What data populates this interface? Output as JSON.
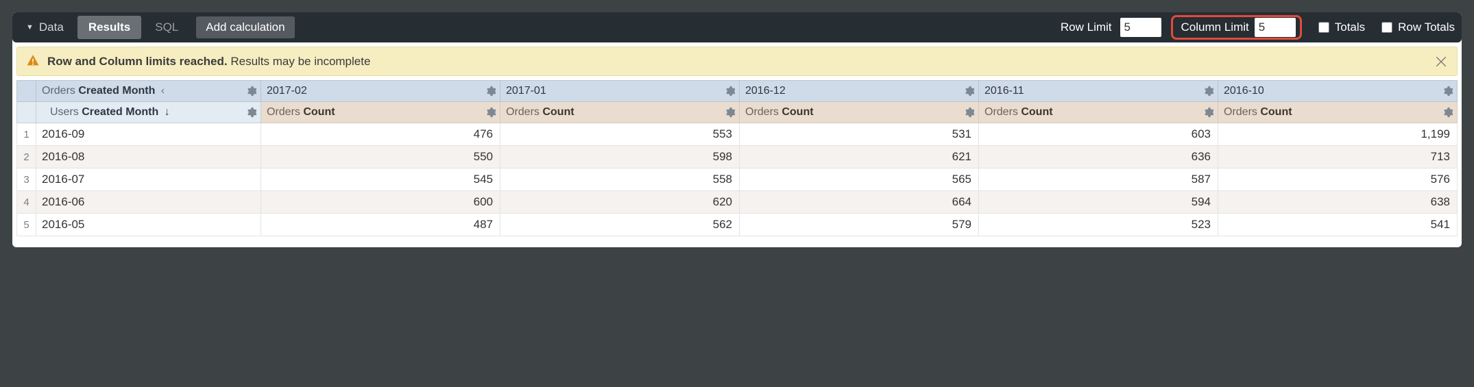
{
  "toolbar": {
    "data_label": "Data",
    "results_label": "Results",
    "sql_label": "SQL",
    "add_calc_label": "Add calculation",
    "row_limit_label": "Row Limit",
    "row_limit_value": "5",
    "column_limit_label": "Column Limit",
    "column_limit_value": "5",
    "totals_label": "Totals",
    "row_totals_label": "Row Totals",
    "highlight_color": "#e24b3b"
  },
  "banner": {
    "strong": "Row and Column limits reached.",
    "rest": " Results may be incomplete"
  },
  "pivot": {
    "dim_prefix": "Orders ",
    "dim_field": "Created Month",
    "columns": [
      "2017-02",
      "2017-01",
      "2016-12",
      "2016-11",
      "2016-10"
    ]
  },
  "row_dim": {
    "prefix": "Users ",
    "field": "Created Month"
  },
  "measure": {
    "prefix": "Orders ",
    "name": "Count"
  },
  "rows": [
    {
      "label": "2016-09",
      "values": [
        "476",
        "553",
        "531",
        "603",
        "1,199"
      ]
    },
    {
      "label": "2016-08",
      "values": [
        "550",
        "598",
        "621",
        "636",
        "713"
      ]
    },
    {
      "label": "2016-07",
      "values": [
        "545",
        "558",
        "565",
        "587",
        "576"
      ]
    },
    {
      "label": "2016-06",
      "values": [
        "600",
        "620",
        "664",
        "594",
        "638"
      ]
    },
    {
      "label": "2016-05",
      "values": [
        "487",
        "562",
        "579",
        "523",
        "541"
      ]
    }
  ],
  "colors": {
    "toolbar_bg": "#262d33",
    "banner_bg": "#f6edc1",
    "pivot_header_bg": "#cfdbe8",
    "row_header_bg": "#e3ebf3",
    "measure_header_bg": "#eaddd0",
    "row_stripe_bg": "#f5f2ef"
  }
}
